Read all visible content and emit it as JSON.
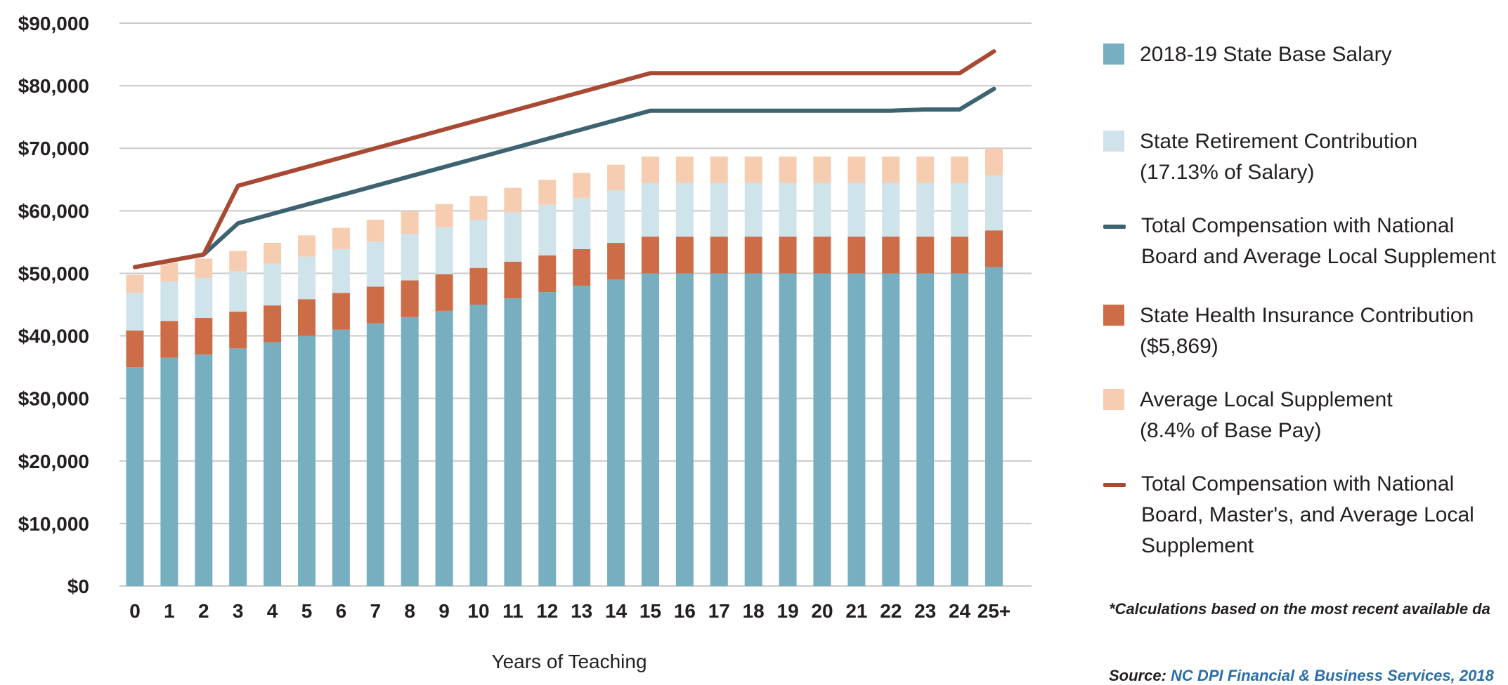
{
  "chart_data": {
    "type": "bar",
    "stacked": true,
    "xlabel": "Years of Teaching",
    "ylabel": "",
    "ylim": [
      0,
      90000
    ],
    "yticks": [
      "$0",
      "$10,000",
      "$20,000",
      "$30,000",
      "$40,000",
      "$50,000",
      "$60,000",
      "$70,000",
      "$80,000",
      "$90,000"
    ],
    "grid": true,
    "legend_position": "right",
    "categories": [
      "0",
      "1",
      "2",
      "3",
      "4",
      "5",
      "6",
      "7",
      "8",
      "9",
      "10",
      "11",
      "12",
      "13",
      "14",
      "15",
      "16",
      "17",
      "18",
      "19",
      "20",
      "21",
      "22",
      "23",
      "24",
      "25+"
    ],
    "series": [
      {
        "name": "2018-19 State Base Salary",
        "kind": "bar",
        "color": "#77afc1",
        "values": [
          35000,
          36500,
          37000,
          38000,
          39000,
          40000,
          41000,
          42000,
          43000,
          44000,
          45000,
          46000,
          47000,
          48000,
          49000,
          50000,
          50000,
          50000,
          50000,
          50000,
          50000,
          50000,
          50000,
          50000,
          50000,
          51000
        ]
      },
      {
        "name": "State Health Insurance Contribution\n($5,869)",
        "kind": "bar",
        "color": "#cd6d48",
        "values": [
          5869,
          5869,
          5869,
          5869,
          5869,
          5869,
          5869,
          5869,
          5869,
          5869,
          5869,
          5869,
          5869,
          5869,
          5869,
          5869,
          5869,
          5869,
          5869,
          5869,
          5869,
          5869,
          5869,
          5869,
          5869,
          5869
        ]
      },
      {
        "name": "State Retirement Contribution\n(17.13% of Salary)",
        "kind": "bar",
        "color": "#cfe3ea",
        "values": [
          6000,
          6300,
          6400,
          6500,
          6700,
          6800,
          7000,
          7200,
          7400,
          7500,
          7700,
          7900,
          8100,
          8200,
          8400,
          8600,
          8600,
          8600,
          8600,
          8600,
          8600,
          8600,
          8600,
          8600,
          8600,
          8800
        ]
      },
      {
        "name": "Average Local  Supplement\n(8.4% of Base Pay)",
        "kind": "bar",
        "color": "#f6cdb0",
        "values": [
          2900,
          3000,
          3100,
          3200,
          3300,
          3400,
          3400,
          3500,
          3600,
          3700,
          3800,
          3900,
          4000,
          4000,
          4100,
          4200,
          4200,
          4200,
          4200,
          4200,
          4200,
          4200,
          4200,
          4200,
          4200,
          4300
        ]
      },
      {
        "name": "Total Compensation with National\nBoard and Average Local Supplement",
        "kind": "line",
        "color": "#3e6370",
        "values": [
          51000,
          52000,
          53000,
          58000,
          59500,
          61000,
          62500,
          64000,
          65500,
          67000,
          68500,
          70000,
          71500,
          73000,
          74500,
          76000,
          76000,
          76000,
          76000,
          76000,
          76000,
          76000,
          76000,
          76200,
          76200,
          79500
        ]
      },
      {
        "name": "Total Compensation with National\nBoard, Master's, and Average Local\nSupplement",
        "kind": "line",
        "color": "#a84a33",
        "values": [
          51000,
          52000,
          53000,
          64000,
          65500,
          67000,
          68500,
          70000,
          71500,
          73000,
          74500,
          76000,
          77500,
          79000,
          80500,
          82000,
          82000,
          82000,
          82000,
          82000,
          82000,
          82000,
          82000,
          82000,
          82000,
          85500
        ]
      }
    ]
  },
  "legend": [
    {
      "label": "2018-19 State Base Salary",
      "kind": "swatch",
      "color": "#77afc1"
    },
    {
      "label": "State Retirement Contribution\n(17.13% of Salary)",
      "kind": "swatch",
      "color": "#cfe3ea"
    },
    {
      "label": "Total Compensation with National\nBoard and Average Local Supplement",
      "kind": "line",
      "color": "#3e6370"
    },
    {
      "label": "State Health Insurance Contribution\n($5,869)",
      "kind": "swatch",
      "color": "#cd6d48"
    },
    {
      "label": "Average Local  Supplement\n(8.4% of Base Pay)",
      "kind": "swatch",
      "color": "#f6cdb0"
    },
    {
      "label": "Total Compensation with National\nBoard, Master's, and Average Local\nSupplement",
      "kind": "line",
      "color": "#a84a33"
    }
  ],
  "footnote": "*Calculations based on the most recent available da",
  "source": {
    "prefix": "Source:",
    "link_text": "NC DPI Financial & Business Services, 2018"
  }
}
